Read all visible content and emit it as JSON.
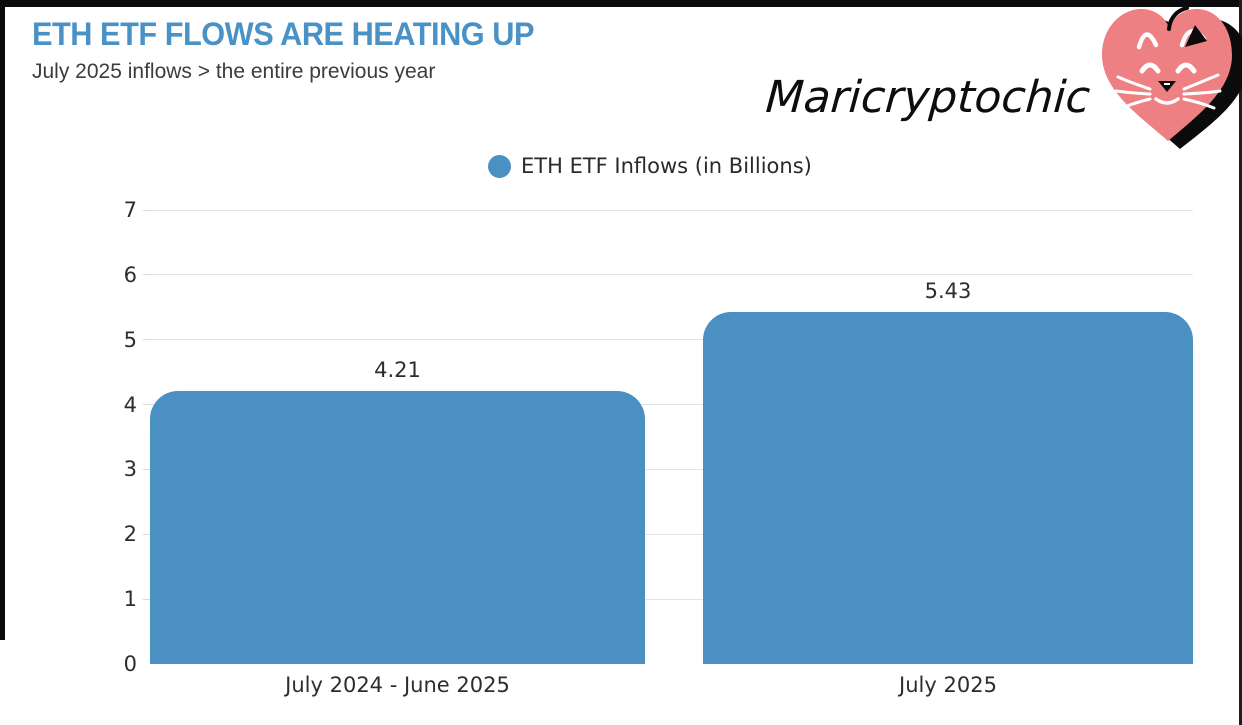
{
  "header": {
    "title": "ETH ETF FLOWS ARE HEATING UP",
    "subtitle": "July 2025 inflows > the entire previous year",
    "watermark": "Maricryptochic"
  },
  "colors": {
    "title_blue": "#4a92c6",
    "bar_blue": "#4a90c2",
    "heart_pink": "#ee8084",
    "grid_gray": "#e3e3e3",
    "text_dark": "#2d2d2d"
  },
  "chart_data": {
    "type": "bar",
    "title": "",
    "legend": "ETH ETF Inflows (in Billions)",
    "legend_position": "top-center",
    "categories": [
      "July 2024 - June 2025",
      "July 2025"
    ],
    "values": [
      4.21,
      5.43
    ],
    "value_labels": [
      "4.21",
      "5.43"
    ],
    "ylabel": "",
    "xlabel": "",
    "ylim": [
      0,
      7
    ],
    "yticks": [
      0,
      1,
      2,
      3,
      4,
      5,
      6,
      7
    ],
    "grid": true,
    "bar_color": "#4a90c2"
  }
}
